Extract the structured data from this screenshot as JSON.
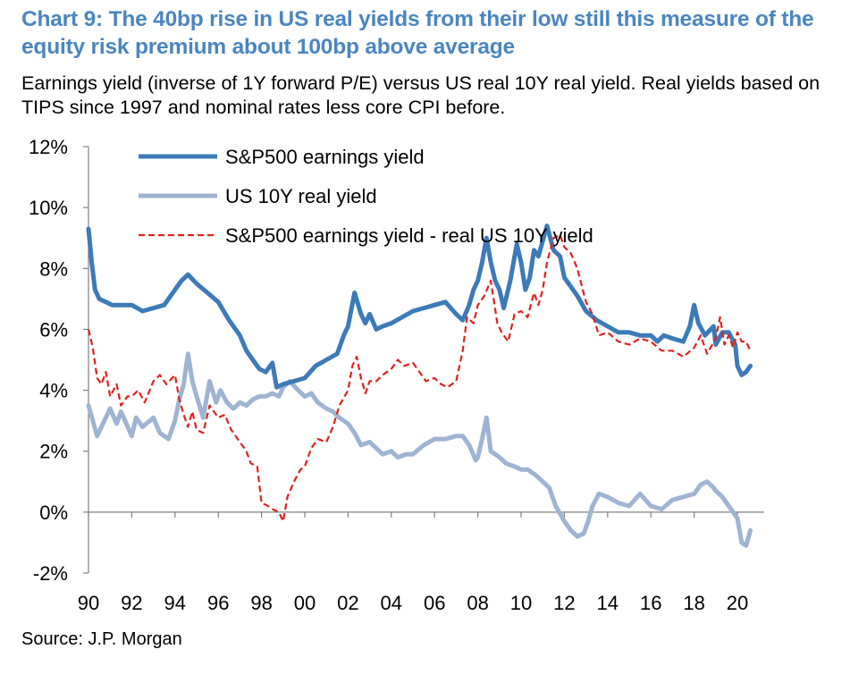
{
  "header": {
    "title": "Chart 9: The 40bp rise in US real yields from their low still this measure of the equity risk premium about 100bp above average",
    "subtitle": "Earnings yield (inverse of 1Y forward P/E) versus US real 10Y real yield. Real yields based on TIPS since 1997 and nominal rates less core CPI before.",
    "source": "Source: J.P. Morgan"
  },
  "chart_data": {
    "type": "line",
    "title": "Chart 9: The 40bp rise in US real yields from their low still this measure of the equity risk premium about 100bp above average",
    "xlabel": "",
    "ylabel": "",
    "xlim": [
      1990,
      2020.7
    ],
    "ylim": [
      -2,
      12
    ],
    "grid": false,
    "legend_position": "top-left",
    "y_ticks": [
      -2,
      0,
      2,
      4,
      6,
      8,
      10,
      12
    ],
    "y_tick_labels": [
      "-2%",
      "0%",
      "2%",
      "4%",
      "6%",
      "8%",
      "10%",
      "12%"
    ],
    "x_ticks": [
      1990,
      1992,
      1994,
      1996,
      1998,
      2000,
      2002,
      2004,
      2006,
      2008,
      2010,
      2012,
      2014,
      2016,
      2018,
      2020
    ],
    "x_tick_labels": [
      "90",
      "92",
      "94",
      "96",
      "98",
      "00",
      "02",
      "04",
      "06",
      "08",
      "10",
      "12",
      "14",
      "16",
      "18",
      "20"
    ],
    "series": [
      {
        "name": "S&P500 earnings yield",
        "color": "#3c7bb8",
        "style": "solid-thick",
        "x": [
          1990.0,
          1990.15,
          1990.3,
          1990.5,
          1990.8,
          1991.1,
          1991.5,
          1992.0,
          1992.5,
          1993.0,
          1993.5,
          1994.0,
          1994.3,
          1994.6,
          1995.0,
          1995.5,
          1996.0,
          1996.5,
          1997.0,
          1997.3,
          1997.6,
          1997.9,
          1998.2,
          1998.5,
          1998.7,
          1999.0,
          1999.5,
          2000.0,
          2000.5,
          2001.0,
          2001.5,
          2001.8,
          2002.0,
          2002.3,
          2002.6,
          2002.8,
          2003.0,
          2003.3,
          2003.6,
          2004.0,
          2004.5,
          2005.0,
          2005.5,
          2006.0,
          2006.5,
          2007.0,
          2007.3,
          2007.6,
          2007.8,
          2008.0,
          2008.2,
          2008.4,
          2008.6,
          2008.8,
          2009.0,
          2009.2,
          2009.5,
          2009.8,
          2010.0,
          2010.2,
          2010.4,
          2010.6,
          2010.8,
          2011.0,
          2011.2,
          2011.5,
          2011.8,
          2012.0,
          2012.3,
          2012.6,
          2013.0,
          2013.5,
          2014.0,
          2014.5,
          2015.0,
          2015.5,
          2016.0,
          2016.3,
          2016.6,
          2017.0,
          2017.5,
          2017.8,
          2018.0,
          2018.2,
          2018.5,
          2018.9,
          2019.0,
          2019.3,
          2019.6,
          2019.9,
          2020.0,
          2020.2,
          2020.4,
          2020.6
        ],
        "values": [
          9.3,
          8.2,
          7.3,
          7.0,
          6.9,
          6.8,
          6.8,
          6.8,
          6.6,
          6.7,
          6.8,
          7.3,
          7.6,
          7.8,
          7.5,
          7.2,
          6.9,
          6.3,
          5.8,
          5.3,
          5.0,
          4.7,
          4.6,
          4.9,
          4.1,
          4.2,
          4.3,
          4.4,
          4.8,
          5.0,
          5.2,
          5.8,
          6.1,
          7.2,
          6.5,
          6.2,
          6.5,
          6.0,
          6.1,
          6.2,
          6.4,
          6.6,
          6.7,
          6.8,
          6.9,
          6.5,
          6.3,
          6.8,
          7.3,
          7.6,
          8.2,
          9.0,
          8.2,
          7.6,
          7.3,
          6.7,
          7.6,
          8.8,
          8.2,
          7.3,
          7.7,
          8.6,
          8.4,
          8.9,
          9.4,
          8.6,
          8.4,
          7.7,
          7.4,
          7.1,
          6.6,
          6.3,
          6.1,
          5.9,
          5.9,
          5.8,
          5.8,
          5.6,
          5.8,
          5.7,
          5.6,
          6.1,
          6.8,
          6.2,
          5.8,
          6.1,
          5.5,
          5.9,
          5.9,
          5.5,
          4.8,
          4.5,
          4.6,
          4.8
        ]
      },
      {
        "name": "US 10Y real yield",
        "color": "#9fb4d3",
        "style": "solid-thick",
        "x": [
          1990.0,
          1990.2,
          1990.4,
          1990.6,
          1991.0,
          1991.3,
          1991.5,
          1992.0,
          1992.2,
          1992.5,
          1993.0,
          1993.3,
          1993.7,
          1994.0,
          1994.2,
          1994.4,
          1994.6,
          1994.8,
          1995.0,
          1995.3,
          1995.6,
          1995.9,
          1996.1,
          1996.4,
          1996.7,
          1997.0,
          1997.3,
          1997.6,
          1997.9,
          1998.2,
          1998.5,
          1998.8,
          1999.0,
          1999.3,
          1999.7,
          2000.0,
          2000.3,
          2000.6,
          2001.0,
          2001.3,
          2001.6,
          2002.0,
          2002.3,
          2002.6,
          2003.0,
          2003.3,
          2003.6,
          2004.0,
          2004.3,
          2004.7,
          2005.0,
          2005.5,
          2006.0,
          2006.5,
          2007.0,
          2007.3,
          2007.6,
          2007.9,
          2008.0,
          2008.2,
          2008.4,
          2008.6,
          2009.0,
          2009.3,
          2009.7,
          2010.0,
          2010.3,
          2010.7,
          2011.0,
          2011.3,
          2011.6,
          2012.0,
          2012.3,
          2012.6,
          2012.9,
          2013.1,
          2013.3,
          2013.6,
          2014.0,
          2014.5,
          2015.0,
          2015.5,
          2016.0,
          2016.5,
          2017.0,
          2017.5,
          2018.0,
          2018.3,
          2018.6,
          2018.9,
          2019.0,
          2019.3,
          2019.6,
          2020.0,
          2020.2,
          2020.4,
          2020.6
        ],
        "values": [
          3.5,
          3.0,
          2.5,
          2.8,
          3.4,
          2.9,
          3.3,
          2.5,
          3.1,
          2.8,
          3.1,
          2.6,
          2.4,
          3.0,
          3.7,
          4.2,
          5.2,
          4.3,
          3.8,
          3.1,
          4.3,
          3.6,
          4.0,
          3.6,
          3.4,
          3.6,
          3.5,
          3.7,
          3.8,
          3.8,
          3.9,
          3.8,
          4.1,
          4.3,
          4.0,
          3.8,
          3.9,
          3.6,
          3.4,
          3.3,
          3.1,
          2.9,
          2.6,
          2.2,
          2.3,
          2.1,
          1.9,
          2.0,
          1.8,
          1.9,
          1.9,
          2.2,
          2.4,
          2.4,
          2.5,
          2.5,
          2.2,
          1.7,
          1.8,
          2.4,
          3.1,
          2.0,
          1.8,
          1.6,
          1.5,
          1.4,
          1.4,
          1.2,
          1.0,
          0.8,
          0.2,
          -0.3,
          -0.6,
          -0.8,
          -0.7,
          -0.3,
          0.2,
          0.6,
          0.5,
          0.3,
          0.2,
          0.6,
          0.2,
          0.1,
          0.4,
          0.5,
          0.6,
          0.9,
          1.0,
          0.8,
          0.7,
          0.5,
          0.2,
          -0.2,
          -1.0,
          -1.1,
          -0.6
        ]
      },
      {
        "name": "S&P500 earnings yield - real US 10Y yield",
        "color": "#e0211e",
        "style": "dashed",
        "x": [
          1990.0,
          1990.2,
          1990.4,
          1990.6,
          1990.8,
          1991.0,
          1991.3,
          1991.5,
          1991.8,
          1992.0,
          1992.3,
          1992.6,
          1993.0,
          1993.3,
          1993.6,
          1994.0,
          1994.2,
          1994.4,
          1994.6,
          1994.8,
          1995.0,
          1995.3,
          1995.6,
          1996.0,
          1996.3,
          1996.6,
          1997.0,
          1997.3,
          1997.5,
          1997.8,
          1998.0,
          1998.3,
          1998.5,
          1998.8,
          1999.0,
          1999.2,
          1999.5,
          1999.8,
          2000.0,
          2000.3,
          2000.6,
          2001.0,
          2001.3,
          2001.6,
          2002.0,
          2002.2,
          2002.4,
          2002.6,
          2002.8,
          2003.0,
          2003.3,
          2003.6,
          2004.0,
          2004.3,
          2004.6,
          2005.0,
          2005.3,
          2005.6,
          2006.0,
          2006.3,
          2006.6,
          2007.0,
          2007.3,
          2007.5,
          2007.8,
          2008.0,
          2008.3,
          2008.6,
          2008.9,
          2009.1,
          2009.4,
          2009.7,
          2010.0,
          2010.3,
          2010.6,
          2010.8,
          2011.0,
          2011.2,
          2011.5,
          2011.8,
          2012.0,
          2012.3,
          2012.6,
          2013.0,
          2013.3,
          2013.6,
          2014.0,
          2014.5,
          2015.0,
          2015.5,
          2016.0,
          2016.5,
          2017.0,
          2017.5,
          2018.0,
          2018.3,
          2018.6,
          2019.0,
          2019.2,
          2019.4,
          2019.6,
          2019.8,
          2020.0,
          2020.2,
          2020.4,
          2020.6
        ],
        "values": [
          6.0,
          5.4,
          4.4,
          4.2,
          4.6,
          3.8,
          4.2,
          3.5,
          3.8,
          3.8,
          4.0,
          3.6,
          4.3,
          4.5,
          4.2,
          4.5,
          3.7,
          3.2,
          2.8,
          3.3,
          2.7,
          2.6,
          3.5,
          3.1,
          3.2,
          2.7,
          2.3,
          2.0,
          1.6,
          1.5,
          0.3,
          0.2,
          0.1,
          0.0,
          -0.3,
          0.5,
          1.0,
          1.4,
          1.5,
          2.1,
          2.4,
          2.3,
          2.8,
          3.5,
          4.0,
          4.8,
          5.1,
          4.4,
          3.9,
          4.3,
          4.3,
          4.5,
          4.7,
          5.0,
          4.8,
          4.9,
          4.6,
          4.3,
          4.4,
          4.2,
          4.1,
          4.3,
          5.3,
          6.4,
          6.2,
          6.8,
          7.1,
          7.6,
          6.2,
          5.9,
          5.6,
          6.5,
          6.6,
          6.4,
          7.2,
          6.8,
          7.3,
          8.2,
          9.0,
          9.1,
          8.7,
          8.5,
          8.0,
          6.9,
          6.5,
          5.8,
          5.9,
          5.6,
          5.5,
          5.7,
          5.6,
          5.3,
          5.3,
          5.1,
          5.4,
          5.8,
          5.2,
          5.7,
          6.4,
          5.5,
          5.8,
          5.4,
          5.9,
          5.6,
          5.6,
          5.3
        ]
      }
    ]
  }
}
